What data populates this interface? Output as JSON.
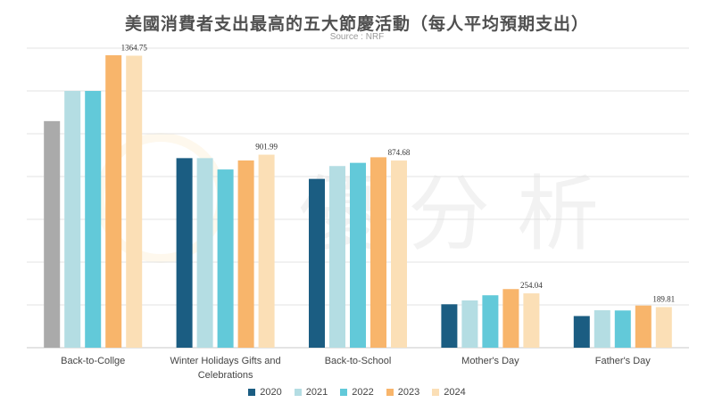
{
  "chart_data": {
    "type": "bar",
    "title": "美國消費者支出最高的五大節慶活動（每人平均預期支出）",
    "subtitle": "Source : NRF",
    "categories": [
      "Back-to-Collge",
      "Winter Holidays Gifts and Celebrations",
      "Back-to-School",
      "Mother's Day",
      "Father's Day"
    ],
    "category_lines": [
      [
        "Back-to-Collge"
      ],
      [
        "Winter Holidays Gifts and",
        "Celebrations"
      ],
      [
        "Back-to-School"
      ],
      [
        "Mother's Day"
      ],
      [
        "Father's Day"
      ]
    ],
    "series": [
      {
        "name": "2020",
        "values": [
          1059,
          886,
          789,
          203,
          148
        ]
      },
      {
        "name": "2021",
        "values": [
          1200,
          886,
          849,
          221,
          175
        ]
      },
      {
        "name": "2022",
        "values": [
          1200,
          833,
          864,
          245,
          174
        ]
      },
      {
        "name": "2023",
        "values": [
          1367,
          875,
          890,
          274,
          197
        ]
      },
      {
        "name": "2024",
        "values": [
          1364.75,
          901.99,
          874.68,
          254.04,
          189.81
        ]
      }
    ],
    "series_colors": [
      "#1b5d82",
      "#b4dde3",
      "#62c9d9",
      "#f8b56b",
      "#fbdfb6"
    ],
    "first_series_override": {
      "category_index": 0,
      "color": "#aaaaaa"
    },
    "data_labels": [
      {
        "category_index": 0,
        "series_index": 4,
        "text": "1364.75"
      },
      {
        "category_index": 1,
        "series_index": 4,
        "text": "901.99"
      },
      {
        "category_index": 2,
        "series_index": 4,
        "text": "874.68"
      },
      {
        "category_index": 3,
        "series_index": 4,
        "text": "254.04"
      },
      {
        "category_index": 4,
        "series_index": 4,
        "text": "189.81"
      }
    ],
    "ylim": [
      0,
      1400
    ],
    "y_grid_step": 200,
    "grid": true,
    "y_tick_labels_shown": false,
    "legend_position": "bottom",
    "watermark_text": "優分析"
  }
}
